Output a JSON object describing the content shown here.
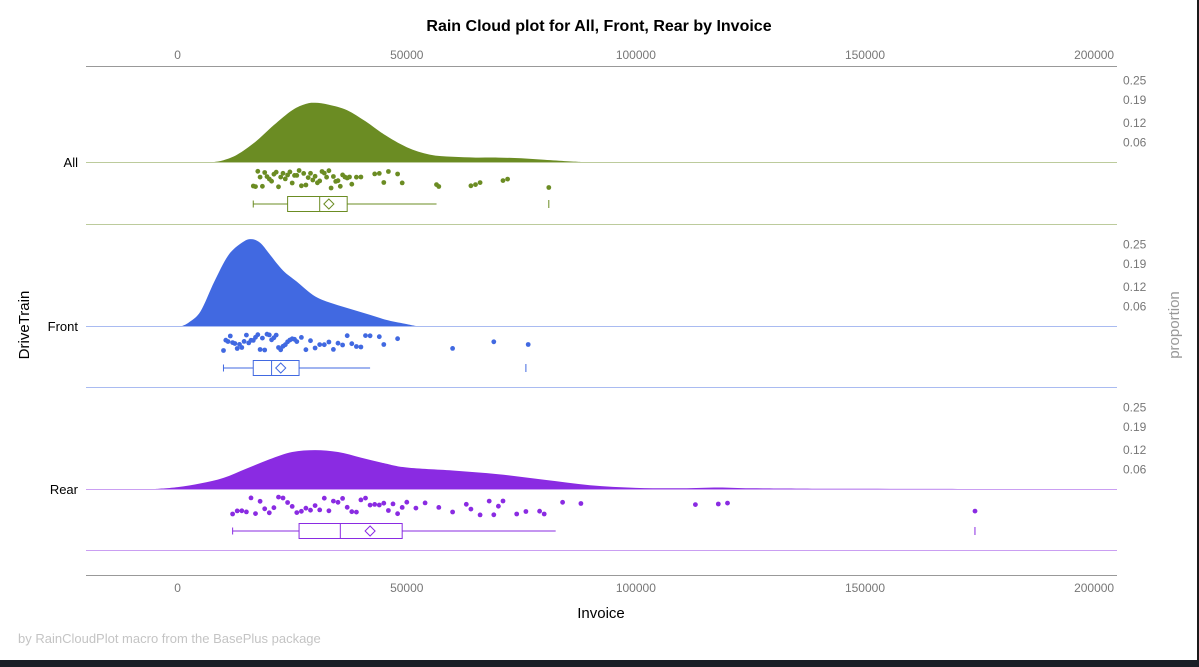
{
  "chart_data": {
    "type": "raincloud",
    "title": "Rain Cloud plot for All, Front, Rear by Invoice",
    "xlabel": "Invoice",
    "ylabel": "DriveTrain",
    "y2label": "proportion",
    "xlim": [
      -20000,
      205000
    ],
    "x_ticks": [
      0,
      50000,
      100000,
      150000,
      200000
    ],
    "x_tick_labels": [
      "0",
      "50000",
      "100000",
      "150000",
      "200000"
    ],
    "density_ticks": [
      "0.25",
      "0.19",
      "0.12",
      "0.06"
    ],
    "groups": [
      {
        "name": "All",
        "color": "#6b8c23",
        "density": [
          [
            8000,
            0
          ],
          [
            10000,
            0.005
          ],
          [
            13000,
            0.02
          ],
          [
            17000,
            0.055
          ],
          [
            21000,
            0.1
          ],
          [
            25000,
            0.14
          ],
          [
            28000,
            0.157
          ],
          [
            30000,
            0.16
          ],
          [
            33000,
            0.155
          ],
          [
            37000,
            0.14
          ],
          [
            41000,
            0.11
          ],
          [
            45000,
            0.075
          ],
          [
            50000,
            0.04
          ],
          [
            55000,
            0.02
          ],
          [
            60000,
            0.014
          ],
          [
            65000,
            0.012
          ],
          [
            70000,
            0.012
          ],
          [
            75000,
            0.01
          ],
          [
            80000,
            0.006
          ],
          [
            85000,
            0.002
          ],
          [
            88000,
            0
          ]
        ],
        "points": [
          16500,
          17000,
          17500,
          18000,
          18500,
          19000,
          19500,
          20000,
          20500,
          21000,
          21500,
          22000,
          22500,
          23000,
          23500,
          24000,
          24500,
          25000,
          25500,
          26000,
          26500,
          27000,
          27500,
          28000,
          28500,
          29000,
          29500,
          30000,
          30500,
          31000,
          31500,
          32000,
          32500,
          33000,
          33500,
          34000,
          34500,
          35000,
          35500,
          36000,
          36500,
          37000,
          37500,
          38000,
          39000,
          40000,
          43000,
          44000,
          45000,
          46000,
          48000,
          49000,
          56500,
          57000,
          64000,
          65000,
          66000,
          71000,
          72000,
          81000
        ],
        "box": {
          "whisker_low": 16500,
          "q1": 24000,
          "median": 31000,
          "q3": 37000,
          "mean": 33000,
          "whisker_high": 56500,
          "outlier": 81000
        }
      },
      {
        "name": "Front",
        "color": "#4169e1",
        "density": [
          [
            1000,
            0
          ],
          [
            2500,
            0.01
          ],
          [
            5000,
            0.04
          ],
          [
            8000,
            0.12
          ],
          [
            11000,
            0.19
          ],
          [
            14000,
            0.225
          ],
          [
            16000,
            0.235
          ],
          [
            18000,
            0.225
          ],
          [
            20000,
            0.195
          ],
          [
            23000,
            0.15
          ],
          [
            26000,
            0.12
          ],
          [
            30000,
            0.08
          ],
          [
            34000,
            0.06
          ],
          [
            38000,
            0.045
          ],
          [
            42000,
            0.03
          ],
          [
            46000,
            0.015
          ],
          [
            50000,
            0.005
          ],
          [
            52000,
            0
          ]
        ],
        "points": [
          10000,
          10500,
          11000,
          11500,
          12000,
          12500,
          13000,
          13500,
          14000,
          14500,
          15000,
          15500,
          16000,
          16500,
          17000,
          17500,
          18000,
          18500,
          19000,
          19500,
          20000,
          20500,
          21000,
          21500,
          22000,
          22500,
          23000,
          23500,
          24000,
          24500,
          25000,
          25500,
          26000,
          27000,
          28000,
          29000,
          30000,
          31000,
          32000,
          33000,
          34000,
          35000,
          36000,
          37000,
          38000,
          39000,
          40000,
          41000,
          42000,
          44000,
          45000,
          48000,
          60000,
          69000,
          76500
        ],
        "box": {
          "whisker_low": 10000,
          "q1": 16500,
          "median": 20500,
          "q3": 26500,
          "mean": 22500,
          "whisker_high": 42000,
          "outlier": 76000
        }
      },
      {
        "name": "Rear",
        "color": "#8a2be2",
        "density": [
          [
            -5000,
            0
          ],
          [
            0,
            0.005
          ],
          [
            5000,
            0.015
          ],
          [
            10000,
            0.03
          ],
          [
            15000,
            0.055
          ],
          [
            20000,
            0.08
          ],
          [
            25000,
            0.1
          ],
          [
            30000,
            0.105
          ],
          [
            35000,
            0.1
          ],
          [
            40000,
            0.085
          ],
          [
            45000,
            0.07
          ],
          [
            50000,
            0.058
          ],
          [
            60000,
            0.05
          ],
          [
            70000,
            0.04
          ],
          [
            80000,
            0.025
          ],
          [
            90000,
            0.01
          ],
          [
            100000,
            0.003
          ],
          [
            110000,
            0.002
          ],
          [
            118000,
            0.004
          ],
          [
            125000,
            0.002
          ],
          [
            135000,
            0.001
          ],
          [
            150000,
            0.0005
          ],
          [
            165000,
            0.0002
          ],
          [
            180000,
            0
          ]
        ],
        "points": [
          12000,
          13000,
          14000,
          15000,
          16000,
          17000,
          18000,
          19000,
          20000,
          21000,
          22000,
          23000,
          24000,
          25000,
          26000,
          27000,
          28000,
          29000,
          30000,
          31000,
          32000,
          33000,
          34000,
          35000,
          36000,
          37000,
          38000,
          39000,
          40000,
          41000,
          42000,
          43000,
          44000,
          45000,
          46000,
          47000,
          48000,
          49000,
          50000,
          52000,
          54000,
          57000,
          60000,
          63000,
          64000,
          66000,
          68000,
          69000,
          70000,
          71000,
          74000,
          76000,
          79000,
          80000,
          84000,
          88000,
          113000,
          118000,
          120000,
          174000
        ],
        "box": {
          "whisker_low": 12000,
          "q1": 26500,
          "median": 35500,
          "q3": 49000,
          "mean": 42000,
          "whisker_high": 82500,
          "outlier": 174000
        }
      }
    ],
    "footnote": "by RainCloudPlot macro from the BasePlus package"
  }
}
